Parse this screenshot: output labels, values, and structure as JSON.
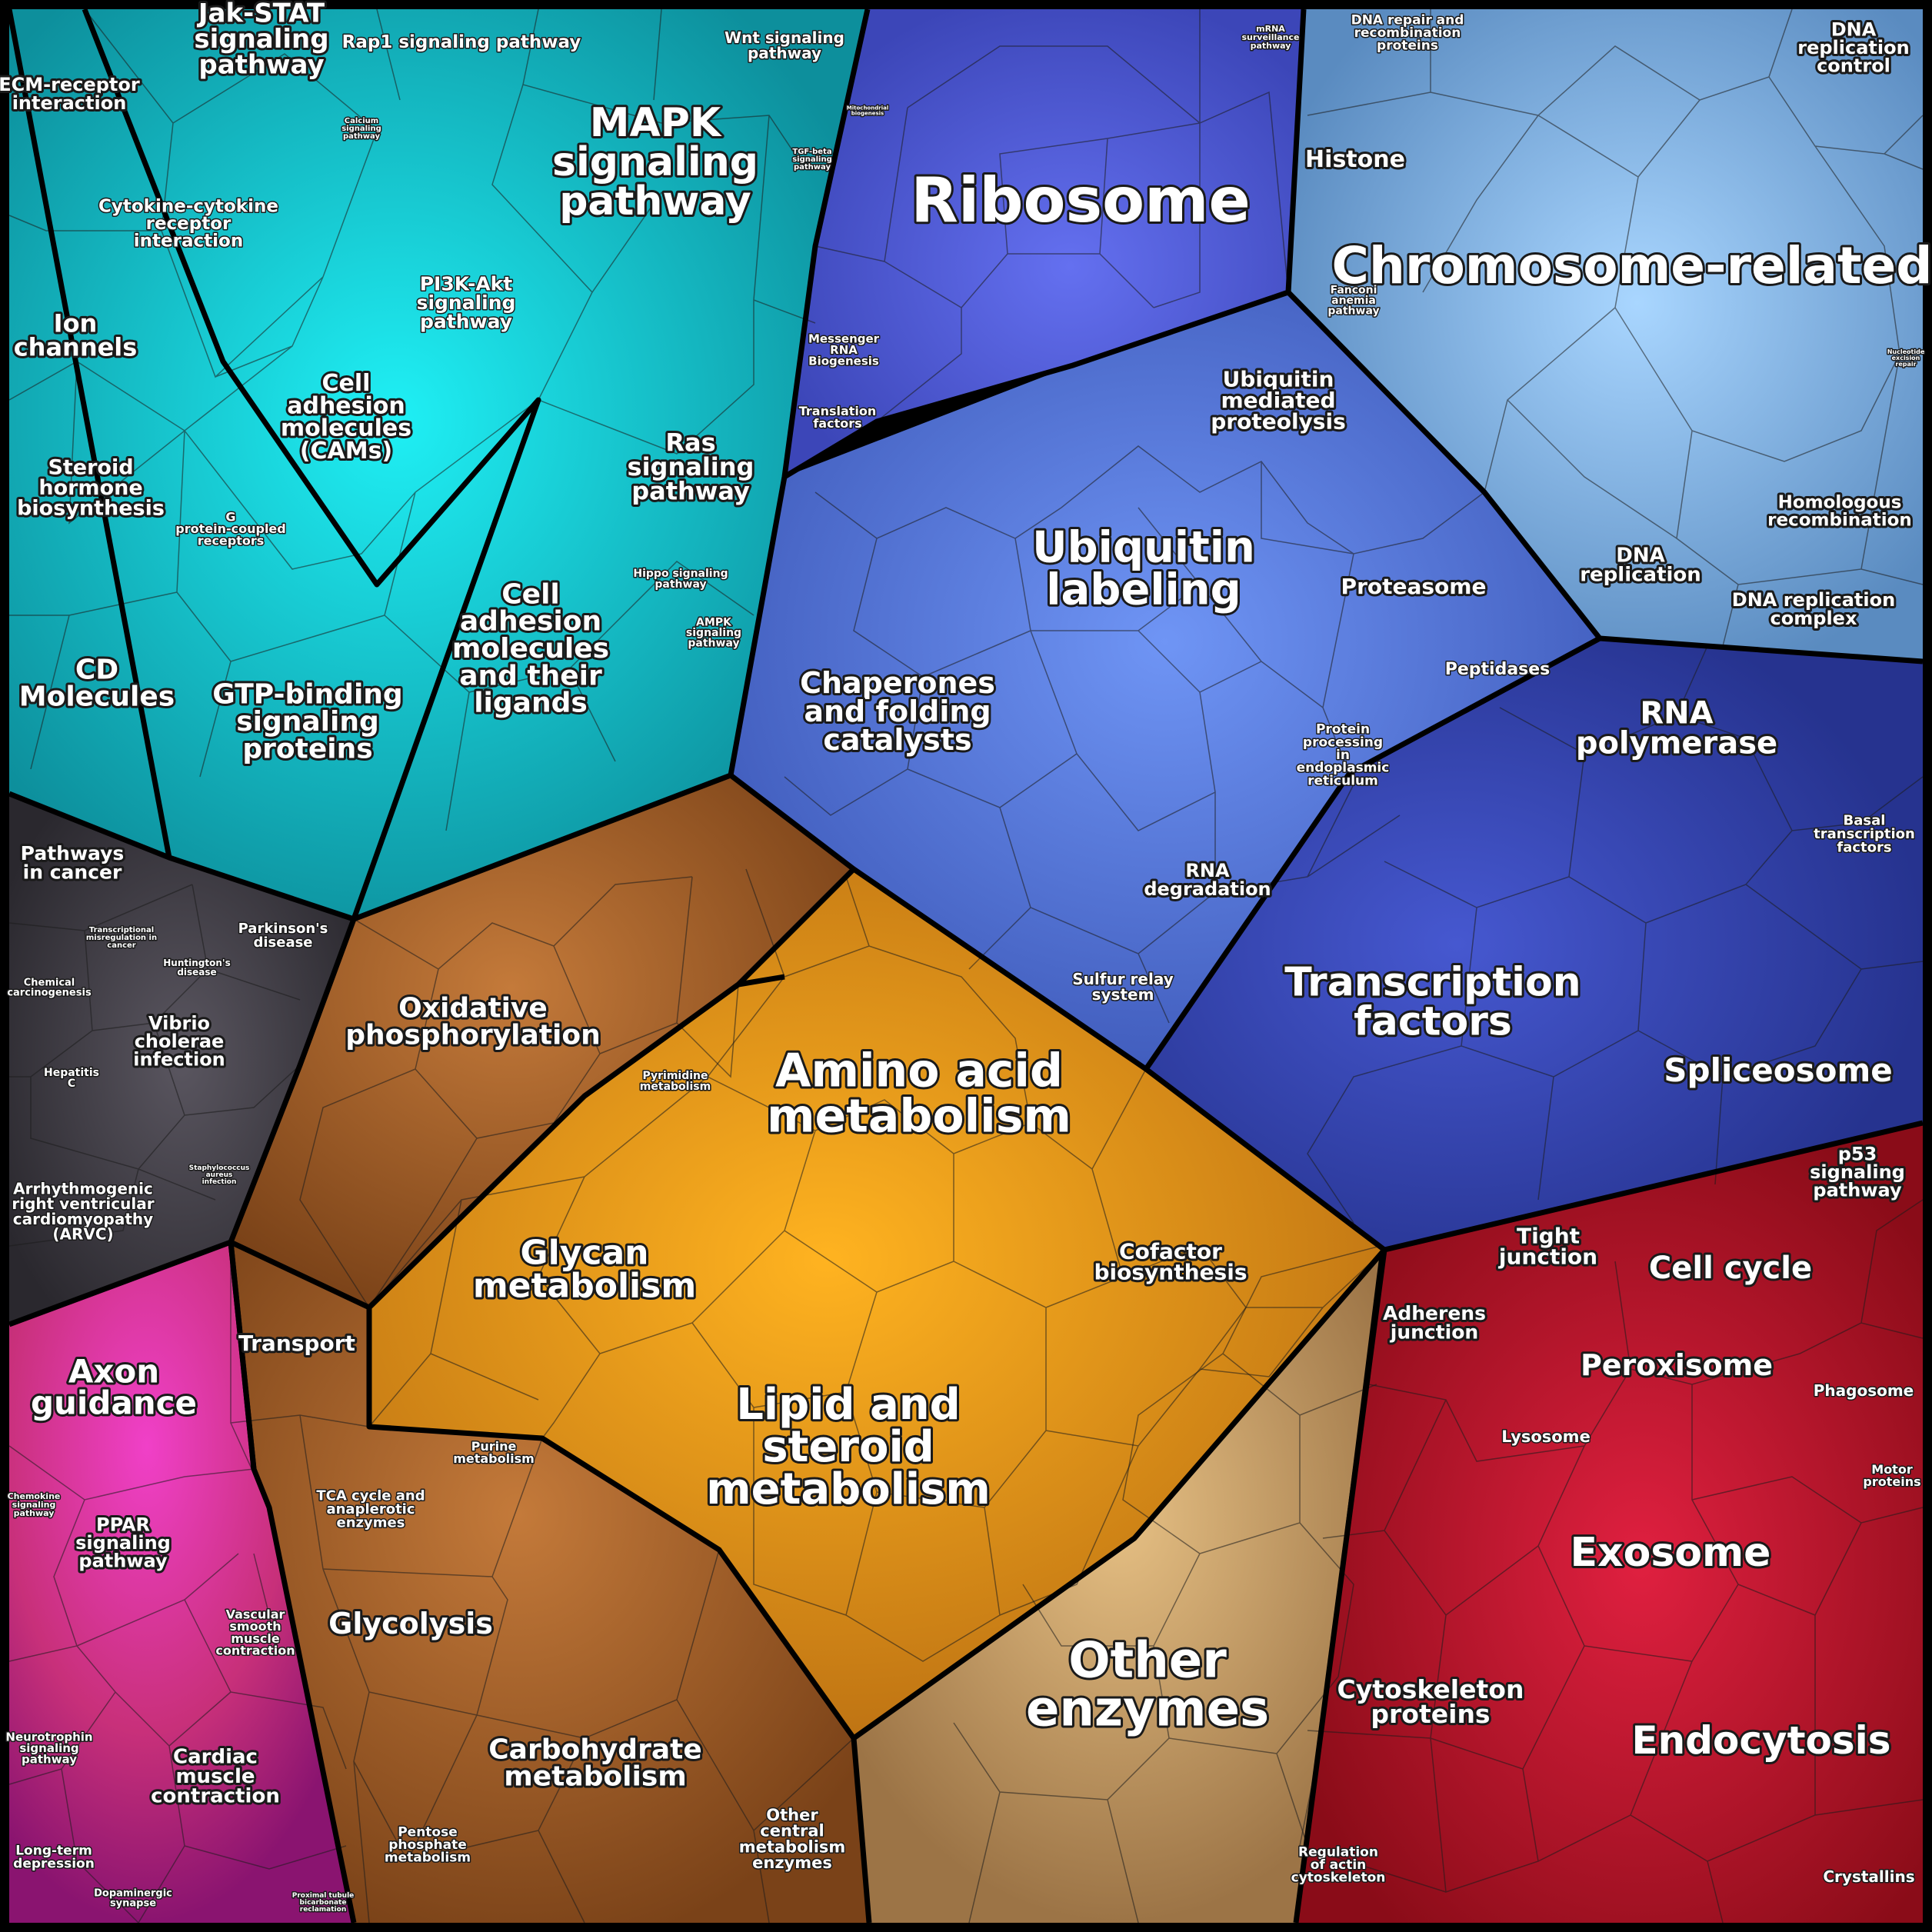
{
  "colors": {
    "teal": "#16b8c2",
    "teal_light": "#1ff0f5",
    "blue": "#4f6fe0",
    "blue_light": "#6f95f5",
    "sky": "#86b8e6",
    "sky_light": "#a9d6ff",
    "indigo": "#3346b8",
    "orange": "#e2901c",
    "orange_light": "#ffb320",
    "brown": "#9a5a28",
    "tan": "#c39a5c",
    "red": "#c01828",
    "pink": "#e63c7a",
    "magenta": "#c01ac8",
    "dark": "#3a3a44"
  },
  "regions": {
    "teal": {
      "title": "MAPK signaling pathway",
      "labels": {
        "jak_stat": "Jak-STAT signaling pathway",
        "rap1": "Rap1 signaling pathway",
        "wnt": "Wnt signaling pathway",
        "ecm": "ECM-receptor interaction",
        "cytokine": "Cytokine-cytokine receptor interaction",
        "calcium": "Calcium signaling pathway",
        "mitochondrial": "Mitochondrial biogenesis",
        "tgf_beta": "TGF-beta signaling pathway",
        "pi3k": "PI3K-Akt signaling pathway",
        "ion_channels": "Ion channels",
        "cams": "Cell adhesion molecules (CAMs)",
        "ras": "Ras signaling pathway",
        "steroid_hormone": "Steroid hormone biosynthesis",
        "gpcr": "G protein-coupled receptors",
        "hippo": "Hippo signaling pathway",
        "ampk": "AMPK signaling pathway",
        "cd_molecules": "CD Molecules",
        "gtp_binding": "GTP-binding signaling proteins",
        "cam_ligands": "Cell adhesion molecules and their ligands"
      }
    },
    "blue": {
      "ribosome": "Ribosome",
      "mrna_surveillance": "mRNA surveillance pathway",
      "messenger_rna": "Messenger RNA Biogenesis",
      "translation_factors": "Translation factors",
      "ubiquitin_mediated": "Ubiquitin mediated proteolysis",
      "ubiquitin_labeling": "Ubiquitin labeling",
      "proteasome": "Proteasome",
      "peptidases": "Peptidases",
      "chaperones": "Chaperones and folding catalysts",
      "protein_processing": "Protein processing in endoplasmic reticulum",
      "rna_degradation": "RNA degradation",
      "sulfur_relay": "Sulfur relay system"
    },
    "sky": {
      "dna_repair": "DNA repair and recombination proteins",
      "dna_replication_control": "DNA replication control",
      "histone": "Histone",
      "chromosome": "Chromosome-related",
      "fanconi": "Fanconi anemia pathway",
      "nucleotide_excision": "Nucleotide excision repair",
      "homologous": "Homologous recombination",
      "dna_replication": "DNA replication",
      "dna_replication_complex": "DNA replication complex"
    },
    "indigo": {
      "rna_polymerase": "RNA polymerase",
      "basal_tf": "Basal transcription factors",
      "transcription_factors": "Transcription factors",
      "spliceosome": "Spliceosome"
    },
    "dark": {
      "pathways_cancer": "Pathways in cancer",
      "transcriptional_mis": "Transcriptional misregulation in cancer",
      "parkinsons": "Parkinson's disease",
      "huntingtons": "Huntington's disease",
      "chemical_carcinogenesis": "Chemical carcinogenesis",
      "vibrio": "Vibrio cholerae infection",
      "hepatitis": "Hepatitis C",
      "staphylococcus": "Staphylococcus aureus infection",
      "arvc": "Arrhythmogenic right ventricular cardiomyopathy (ARVC)"
    },
    "orange": {
      "oxidative": "Oxidative phosphorylation",
      "pyrimidine": "Pyrimidine metabolism",
      "amino_acid": "Amino acid metabolism",
      "cofactor": "Cofactor biosynthesis",
      "glycan": "Glycan metabolism",
      "transport": "Transport",
      "purine": "Purine metabolism",
      "lipid": "Lipid and steroid metabolism",
      "tca": "TCA cycle and anaplerotic enzymes",
      "glycolysis": "Glycolysis",
      "carbohydrate": "Carbohydrate metabolism",
      "pentose": "Pentose phosphate metabolism",
      "other_central": "Other central metabolism enzymes",
      "other_enzymes": "Other enzymes"
    },
    "magenta": {
      "axon": "Axon guidance",
      "chemokine": "Chemokine signaling pathway",
      "ppar": "PPAR signaling pathway",
      "vascular": "Vascular smooth muscle contraction",
      "neurotrophin": "Neurotrophin signaling pathway",
      "cardiac": "Cardiac muscle contraction",
      "long_term": "Long-term depression",
      "dopaminergic": "Dopaminergic synapse",
      "proximal": "Proximal tubule bicarbonate reclamation"
    },
    "red": {
      "p53": "p53 signaling pathway",
      "tight_junction": "Tight junction",
      "cell_cycle": "Cell cycle",
      "adherens": "Adherens junction",
      "peroxisome": "Peroxisome",
      "phagosome": "Phagosome",
      "lysosome": "Lysosome",
      "motor": "Motor proteins",
      "exosome": "Exosome",
      "cytoskeleton": "Cytoskeleton proteins",
      "endocytosis": "Endocytosis",
      "regulation_actin": "Regulation of actin cytoskeleton",
      "crystallins": "Crystallins"
    }
  }
}
